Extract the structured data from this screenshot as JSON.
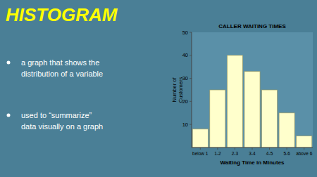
{
  "chart_data": {
    "type": "bar",
    "title": "CALLER WAITING TIMES",
    "annotations": [
      "HISTOGRAM",
      "a graph that shows the\ndistribution of a variable",
      "used to “summarize”\ndata visually on a graph"
    ],
    "categories": [
      "below 1",
      "1-2",
      "2-3",
      "3-4",
      "4-5",
      "5-6",
      "above 6"
    ],
    "values": [
      8,
      25,
      40,
      33,
      25,
      15,
      5
    ],
    "color": "#FFFFCC",
    "xlabel": "Waiting Time in Minutes",
    "ylabel": "Number of\nCustomers",
    "ylim": [
      0,
      50
    ],
    "yticks": [
      10,
      20,
      30,
      40,
      50
    ],
    "grid": false
  }
}
